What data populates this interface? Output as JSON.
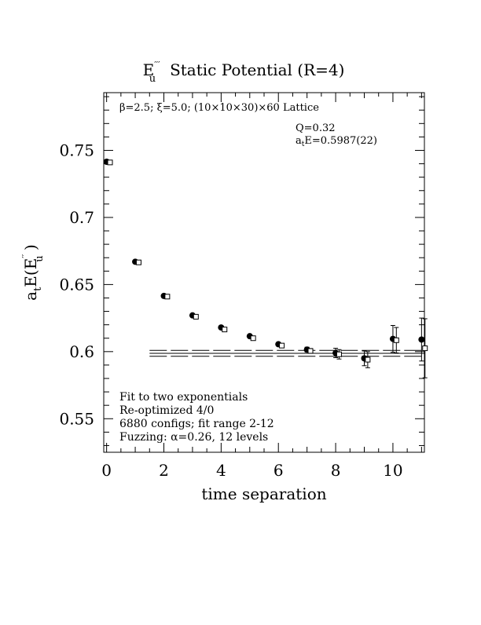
{
  "chart_data": {
    "type": "scatter",
    "title_main": "E",
    "title_superscript": "′′′",
    "title_subscript": "u",
    "title_rest": "Static Potential (R=4)",
    "ylabel_main": "a",
    "ylabel_sub": "t",
    "ylabel_rest1": "E(E",
    "ylabel_sup": "′′",
    "ylabel_sub2": "u",
    "ylabel_rest2": " )",
    "xlabel": "time separation",
    "xlim": [
      -0.1,
      11.1
    ],
    "ylim": [
      0.525,
      0.793
    ],
    "xticks": [
      0,
      2,
      4,
      6,
      8,
      10
    ],
    "yticks": [
      0.55,
      0.6,
      0.65,
      0.7,
      0.75
    ],
    "xtick_labels": [
      "0",
      "2",
      "4",
      "6",
      "8",
      "10"
    ],
    "ytick_labels": [
      "0.55",
      "0.6",
      "0.65",
      "0.7",
      "0.75"
    ],
    "lattice_text": "β=2.5; ξ=5.0; (10×10×30)×60 Lattice",
    "fit_q": "Q=0.32",
    "fit_energy": "aₜE=0.5987(22)",
    "notes": [
      "Fit to two exponentials",
      "Re-optimized 4/0",
      "6880 configs; fit range 2-12",
      "Fuzzing: α=0.26, 12 levels"
    ],
    "series": [
      {
        "marker": "filled-circle",
        "x": [
          0,
          1,
          2,
          3,
          4,
          5,
          6,
          7,
          8,
          9,
          10,
          11
        ],
        "y": [
          0.7415,
          0.667,
          0.6415,
          0.627,
          0.618,
          0.6115,
          0.6055,
          0.6015,
          0.599,
          0.595,
          0.6095,
          0.609
        ],
        "err": [
          0.0005,
          0.0006,
          0.0007,
          0.0009,
          0.001,
          0.0012,
          0.0014,
          0.0018,
          0.0035,
          0.0055,
          0.01,
          0.016
        ]
      },
      {
        "marker": "open-square",
        "x": [
          0.12,
          1.12,
          2.12,
          3.12,
          4.12,
          5.12,
          6.12,
          7.12,
          8.12,
          9.12,
          10.12,
          11.12
        ],
        "y": [
          0.741,
          0.6665,
          0.641,
          0.626,
          0.6165,
          0.61,
          0.6045,
          0.6005,
          0.598,
          0.594,
          0.6085,
          0.6025
        ],
        "err": [
          0.0005,
          0.0006,
          0.0007,
          0.0009,
          0.001,
          0.0012,
          0.0014,
          0.0018,
          0.0035,
          0.006,
          0.0095,
          0.022
        ]
      }
    ],
    "fit": {
      "value": 0.5987,
      "error": 0.0022,
      "x_start": 1.5,
      "x_end": 11.1
    }
  }
}
